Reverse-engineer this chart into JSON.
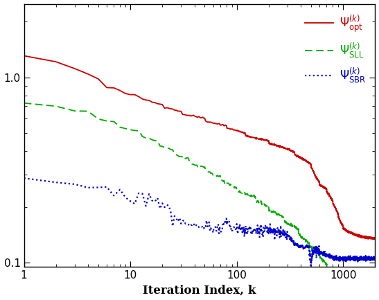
{
  "xlabel": "Iteration Index, k",
  "xlim": [
    1,
    2000
  ],
  "ylim": [
    0.095,
    2.5
  ],
  "background_color": "#ffffff",
  "colors": [
    "#cc0000",
    "#00aa00",
    "#0000cc"
  ],
  "line_width": 1.3,
  "legend_labels": [
    "$\\Psi^{(k)}_{\\mathrm{opt}}$",
    "$\\Psi^{(k)}_{\\mathrm{SLL}}$",
    "$\\Psi^{(k)}_{\\mathrm{SBR}}$"
  ]
}
